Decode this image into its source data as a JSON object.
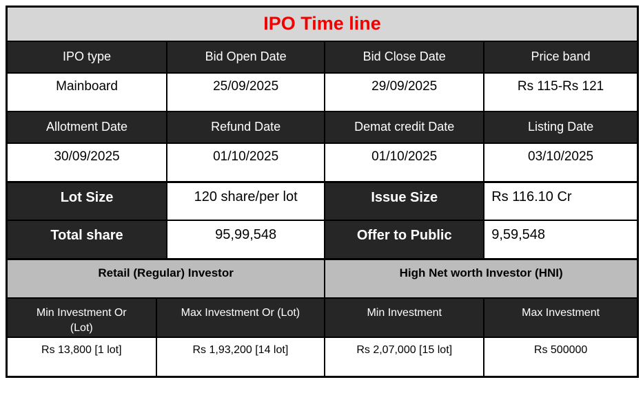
{
  "title": "IPO Time line",
  "colors": {
    "title_text": "#f20000",
    "dark_cell_bg": "#262626",
    "title_band_bg": "#d6d6d6",
    "section_band_bg": "#bcbcbc",
    "border": "#000000"
  },
  "timeline": {
    "header1": [
      "IPO type",
      "Bid Open Date",
      "Bid Close Date",
      "Price band"
    ],
    "row1": [
      "Mainboard",
      "25/09/2025",
      "29/09/2025",
      "Rs 115-Rs 121"
    ],
    "header2": [
      "Allotment Date",
      "Refund Date",
      "Demat credit Date",
      "Listing Date"
    ],
    "row2": [
      "30/09/2025",
      "01/10/2025",
      "01/10/2025",
      "03/10/2025"
    ]
  },
  "details": {
    "lot_size_label": "Lot Size",
    "lot_size_value": "120 share/per lot",
    "issue_size_label": "Issue Size",
    "issue_size_value": "Rs 116.10 Cr",
    "total_share_label": "Total share",
    "total_share_value": "95,99,548",
    "offer_to_public_label": "Offer to Public",
    "offer_to_public_value": "9,59,548"
  },
  "investors": {
    "groups": [
      "Retail (Regular) Investor",
      "High Net worth Investor (HNI)"
    ],
    "subheaders": [
      "Min Investment Or\n(Lot)",
      "Max Investment Or (Lot)",
      "Min Investment",
      "Max Investment"
    ],
    "values": [
      "Rs 13,800 [1 lot]",
      "Rs 1,93,200 [14 lot]",
      "Rs 2,07,000 [15 lot]",
      "Rs 500000"
    ]
  }
}
